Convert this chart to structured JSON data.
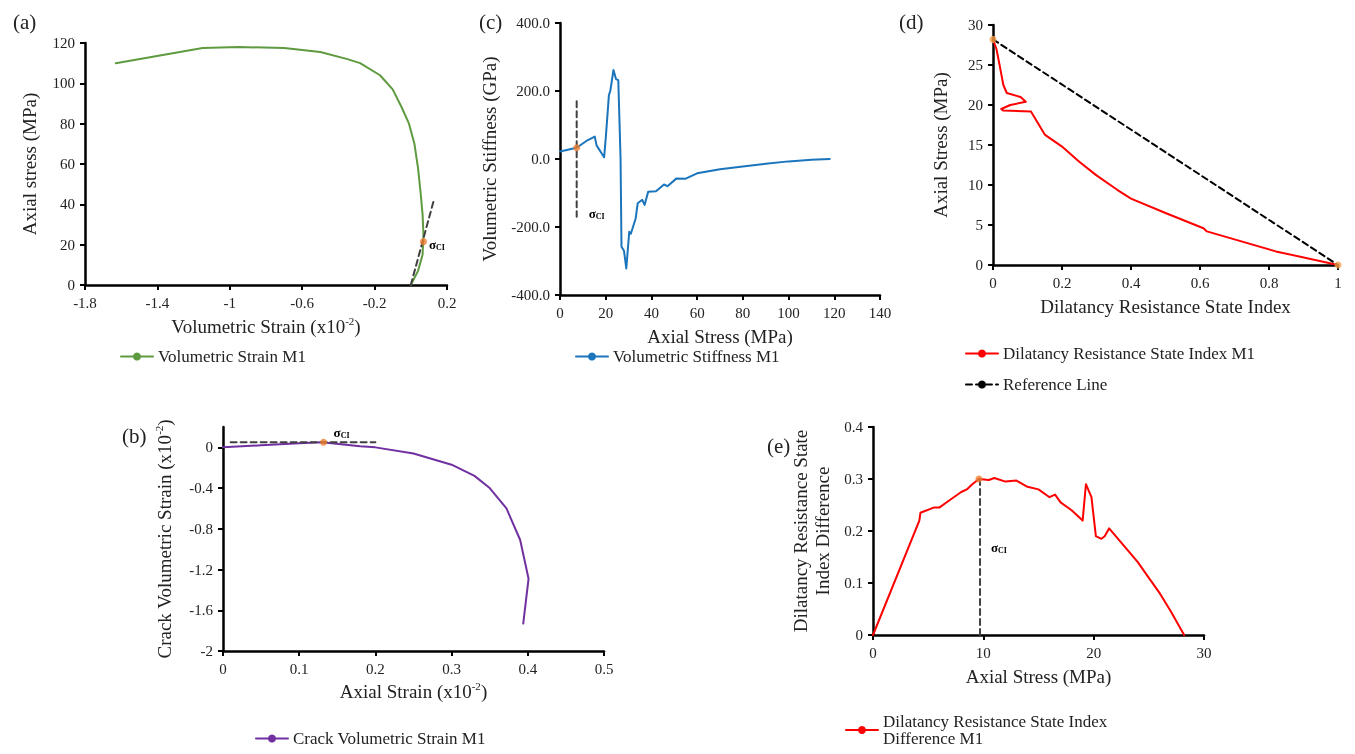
{
  "chart_data": [
    {
      "type": "line",
      "title": "(a)",
      "xlabel": "Volumetric Strain (x10$^{-2}$)",
      "ylabel": "Axial stress (MPa)",
      "xlim": [
        -1.8,
        0.2
      ],
      "xticks": [
        -1.8,
        -1.4,
        -1,
        -0.6,
        -0.2,
        0.2
      ],
      "ylim": [
        0,
        120
      ],
      "yticks": [
        0,
        20,
        40,
        60,
        80,
        100,
        120
      ],
      "marker": "none",
      "legend": "bottom",
      "annotations": [
        {
          "text": "σ$_{CI}$",
          "x": 0.1,
          "y": 20
        }
      ],
      "series": [
        {
          "name": "Volumetric Strain M1",
          "color": "#5e9a3f",
          "x": [
            -1.63,
            -1.15,
            -0.95,
            -0.7,
            -0.5,
            -0.35,
            -0.28,
            -0.17,
            -0.1,
            -0.05,
            -0.01,
            0.02,
            0.04,
            0.055,
            0.065,
            0.07,
            0.065,
            0.04,
            0
          ],
          "values": [
            110,
            117.5,
            118,
            117.5,
            115.5,
            112,
            110,
            104,
            97,
            88,
            80,
            70,
            58,
            45,
            35,
            25,
            15,
            7,
            0
          ]
        },
        {
          "color": "#404040",
          "line_style": "dashed",
          "x": [
            0,
            0.127
          ],
          "values": [
            0,
            42
          ]
        },
        {
          "type": "scatter",
          "marker": "circle",
          "color": "#ed7d31",
          "x": [
            0.07
          ],
          "values": [
            21.5
          ]
        }
      ]
    },
    {
      "type": "line",
      "title": "(c)",
      "xlabel": "Axial Stress (MPa)",
      "ylabel": "Volumetric Stiffness (GPa)",
      "xlim": [
        0,
        140
      ],
      "xticks": [
        0,
        20,
        40,
        60,
        80,
        100,
        120,
        140
      ],
      "ylim": [
        -400,
        400
      ],
      "yticks": [
        {
          "value": -400,
          "label": "-400.0"
        },
        {
          "value": -200,
          "label": "-200.0"
        },
        {
          "value": 0,
          "label": "0.0"
        },
        {
          "value": 200,
          "label": "200.0"
        },
        {
          "value": 400,
          "label": "400.0"
        }
      ],
      "marker": "none",
      "legend": "bottom",
      "annotations": [
        "σ$_{CI}$"
      ],
      "series": [
        {
          "name": "Volumetric Stiffness M1",
          "color": "#1b75bc",
          "x": [
            0,
            7.3,
            12,
            15.2,
            16,
            19.3,
            20,
            21.4,
            22,
            23.4,
            24.5,
            25.5,
            26.5,
            26.9,
            28,
            29,
            30.3,
            31,
            33.1,
            34,
            36,
            37,
            38.6,
            42,
            45.5,
            47,
            51,
            55,
            60,
            70,
            80,
            90,
            100,
            110,
            118
          ],
          "values": [
            22,
            33,
            55,
            66,
            40,
            5,
            60,
            188,
            200,
            262,
            235,
            232,
            0,
            -258,
            -270,
            -322,
            -214,
            -220,
            -175,
            -130,
            -120,
            -135,
            -96,
            -95,
            -75,
            -80,
            -57,
            -58,
            -42,
            -30,
            -22,
            -14,
            -7,
            -2,
            0
          ]
        },
        {
          "color": "#404040",
          "line_style": "dashed",
          "x": [
            7.3,
            7.3
          ],
          "values": [
            170,
            -170
          ]
        },
        {
          "type": "scatter",
          "marker": "circle",
          "color": "#ed7d31",
          "x": [
            7.3
          ],
          "values": [
            33
          ]
        }
      ]
    },
    {
      "type": "line",
      "title": "(d)",
      "xlabel": "Dilatancy Resistance State Index",
      "ylabel": "Axial Stress (MPa)",
      "xlim": [
        0,
        1
      ],
      "xticks": [
        0,
        0.2,
        0.4,
        0.6,
        0.8,
        1
      ],
      "ylim": [
        0,
        30
      ],
      "yticks": [
        0,
        5,
        10,
        15,
        20,
        25,
        30
      ],
      "marker": "none",
      "legend": "bottom",
      "series": [
        {
          "name": "Dilatancy Resistance State Index M1",
          "color": "#ff0000",
          "x": [
            0,
            0.01,
            0.02,
            0.03,
            0.04,
            0.08,
            0.095,
            0.05,
            0.024,
            0.03,
            0.11,
            0.15,
            0.2,
            0.25,
            0.3,
            0.36,
            0.4,
            0.5,
            0.61,
            0.62,
            0.82,
            1
          ],
          "values": [
            28.2,
            27,
            24.8,
            22.5,
            21.5,
            21,
            20.4,
            20,
            19.5,
            19.3,
            19.2,
            16.3,
            14.8,
            12.9,
            11.2,
            9.4,
            8.3,
            6.5,
            4.6,
            4.2,
            1.7,
            0
          ]
        },
        {
          "name": "Reference Line",
          "color": "#000000",
          "line_style": "dashed",
          "x": [
            0,
            1
          ],
          "values": [
            28.2,
            0
          ]
        },
        {
          "type": "scatter",
          "marker": "circle",
          "color": "#f39c4a",
          "x": [
            0,
            1
          ],
          "values": [
            28.2,
            0
          ]
        }
      ]
    },
    {
      "type": "line",
      "title": "(b)",
      "xlabel": "Axial Strain (x10$^{-2}$)",
      "ylabel": "Crack Volumetric Strain (x10$^{-2}$)",
      "xlim": [
        0,
        0.5
      ],
      "xticks": [
        0,
        0.1,
        0.2,
        0.3,
        0.4,
        0.5
      ],
      "ylim": [
        -2,
        0.2
      ],
      "yticks": [
        -2,
        -1.6,
        -1.2,
        -0.8,
        -0.4,
        0
      ],
      "marker": "none",
      "legend": "bottom",
      "annotations": [
        "σ$_{CI}$"
      ],
      "series": [
        {
          "name": "Crack Volumetric Strain M1",
          "color": "#7030a0",
          "x": [
            0,
            0.05,
            0.1,
            0.13,
            0.18,
            0.2,
            0.25,
            0.3,
            0.33,
            0.35,
            0.372,
            0.39,
            0.401,
            0.394
          ],
          "values": [
            0,
            0.02,
            0.04,
            0.05,
            0.01,
            0,
            -0.06,
            -0.17,
            -0.28,
            -0.4,
            -0.6,
            -0.91,
            -1.29,
            -1.73
          ]
        },
        {
          "color": "#404040",
          "line_style": "dashed",
          "x": [
            0.01,
            0.2
          ],
          "values": [
            0.05,
            0.05
          ]
        },
        {
          "type": "scatter",
          "marker": "circle",
          "color": "#ed7d31",
          "x": [
            0.132
          ],
          "values": [
            0.05
          ]
        }
      ]
    },
    {
      "type": "line",
      "title": "(e)",
      "xlabel": "Axial Stress (MPa)",
      "ylabel": "Dilatancy Resistance State Index Difference",
      "xlim": [
        0,
        30
      ],
      "xticks": [
        0,
        10,
        20,
        30
      ],
      "ylim": [
        0,
        0.4
      ],
      "yticks": [
        0,
        0.1,
        0.2,
        0.3,
        0.4
      ],
      "marker": "none",
      "legend": "bottom",
      "annotations": [
        "σ$_{CI}$"
      ],
      "series": [
        {
          "name": "Dilatancy Resistance State Index Difference M1",
          "color": "#ff0000",
          "x": [
            0,
            4.2,
            4.3,
            5.5,
            6,
            7,
            8,
            8.5,
            9,
            9.6,
            10.5,
            11,
            12,
            13,
            14,
            15,
            16,
            16.5,
            17,
            18,
            19,
            19.3,
            19.8,
            20.2,
            20.7,
            21,
            21.4,
            22,
            23,
            24,
            25,
            26,
            27,
            28.2
          ],
          "values": [
            0,
            0.22,
            0.235,
            0.245,
            0.245,
            0.26,
            0.275,
            0.28,
            0.29,
            0.3,
            0.298,
            0.302,
            0.295,
            0.297,
            0.285,
            0.28,
            0.265,
            0.27,
            0.255,
            0.24,
            0.22,
            0.29,
            0.265,
            0.19,
            0.185,
            0.19,
            0.205,
            0.19,
            0.165,
            0.14,
            0.11,
            0.08,
            0.045,
            0
          ]
        },
        {
          "color": "#404040",
          "line_style": "dashed",
          "x": [
            9.7,
            9.7
          ],
          "values": [
            0,
            0.3
          ]
        },
        {
          "type": "scatter",
          "marker": "circle",
          "color": "#ed7d31",
          "x": [
            9.6
          ],
          "values": [
            0.3
          ]
        }
      ]
    }
  ]
}
